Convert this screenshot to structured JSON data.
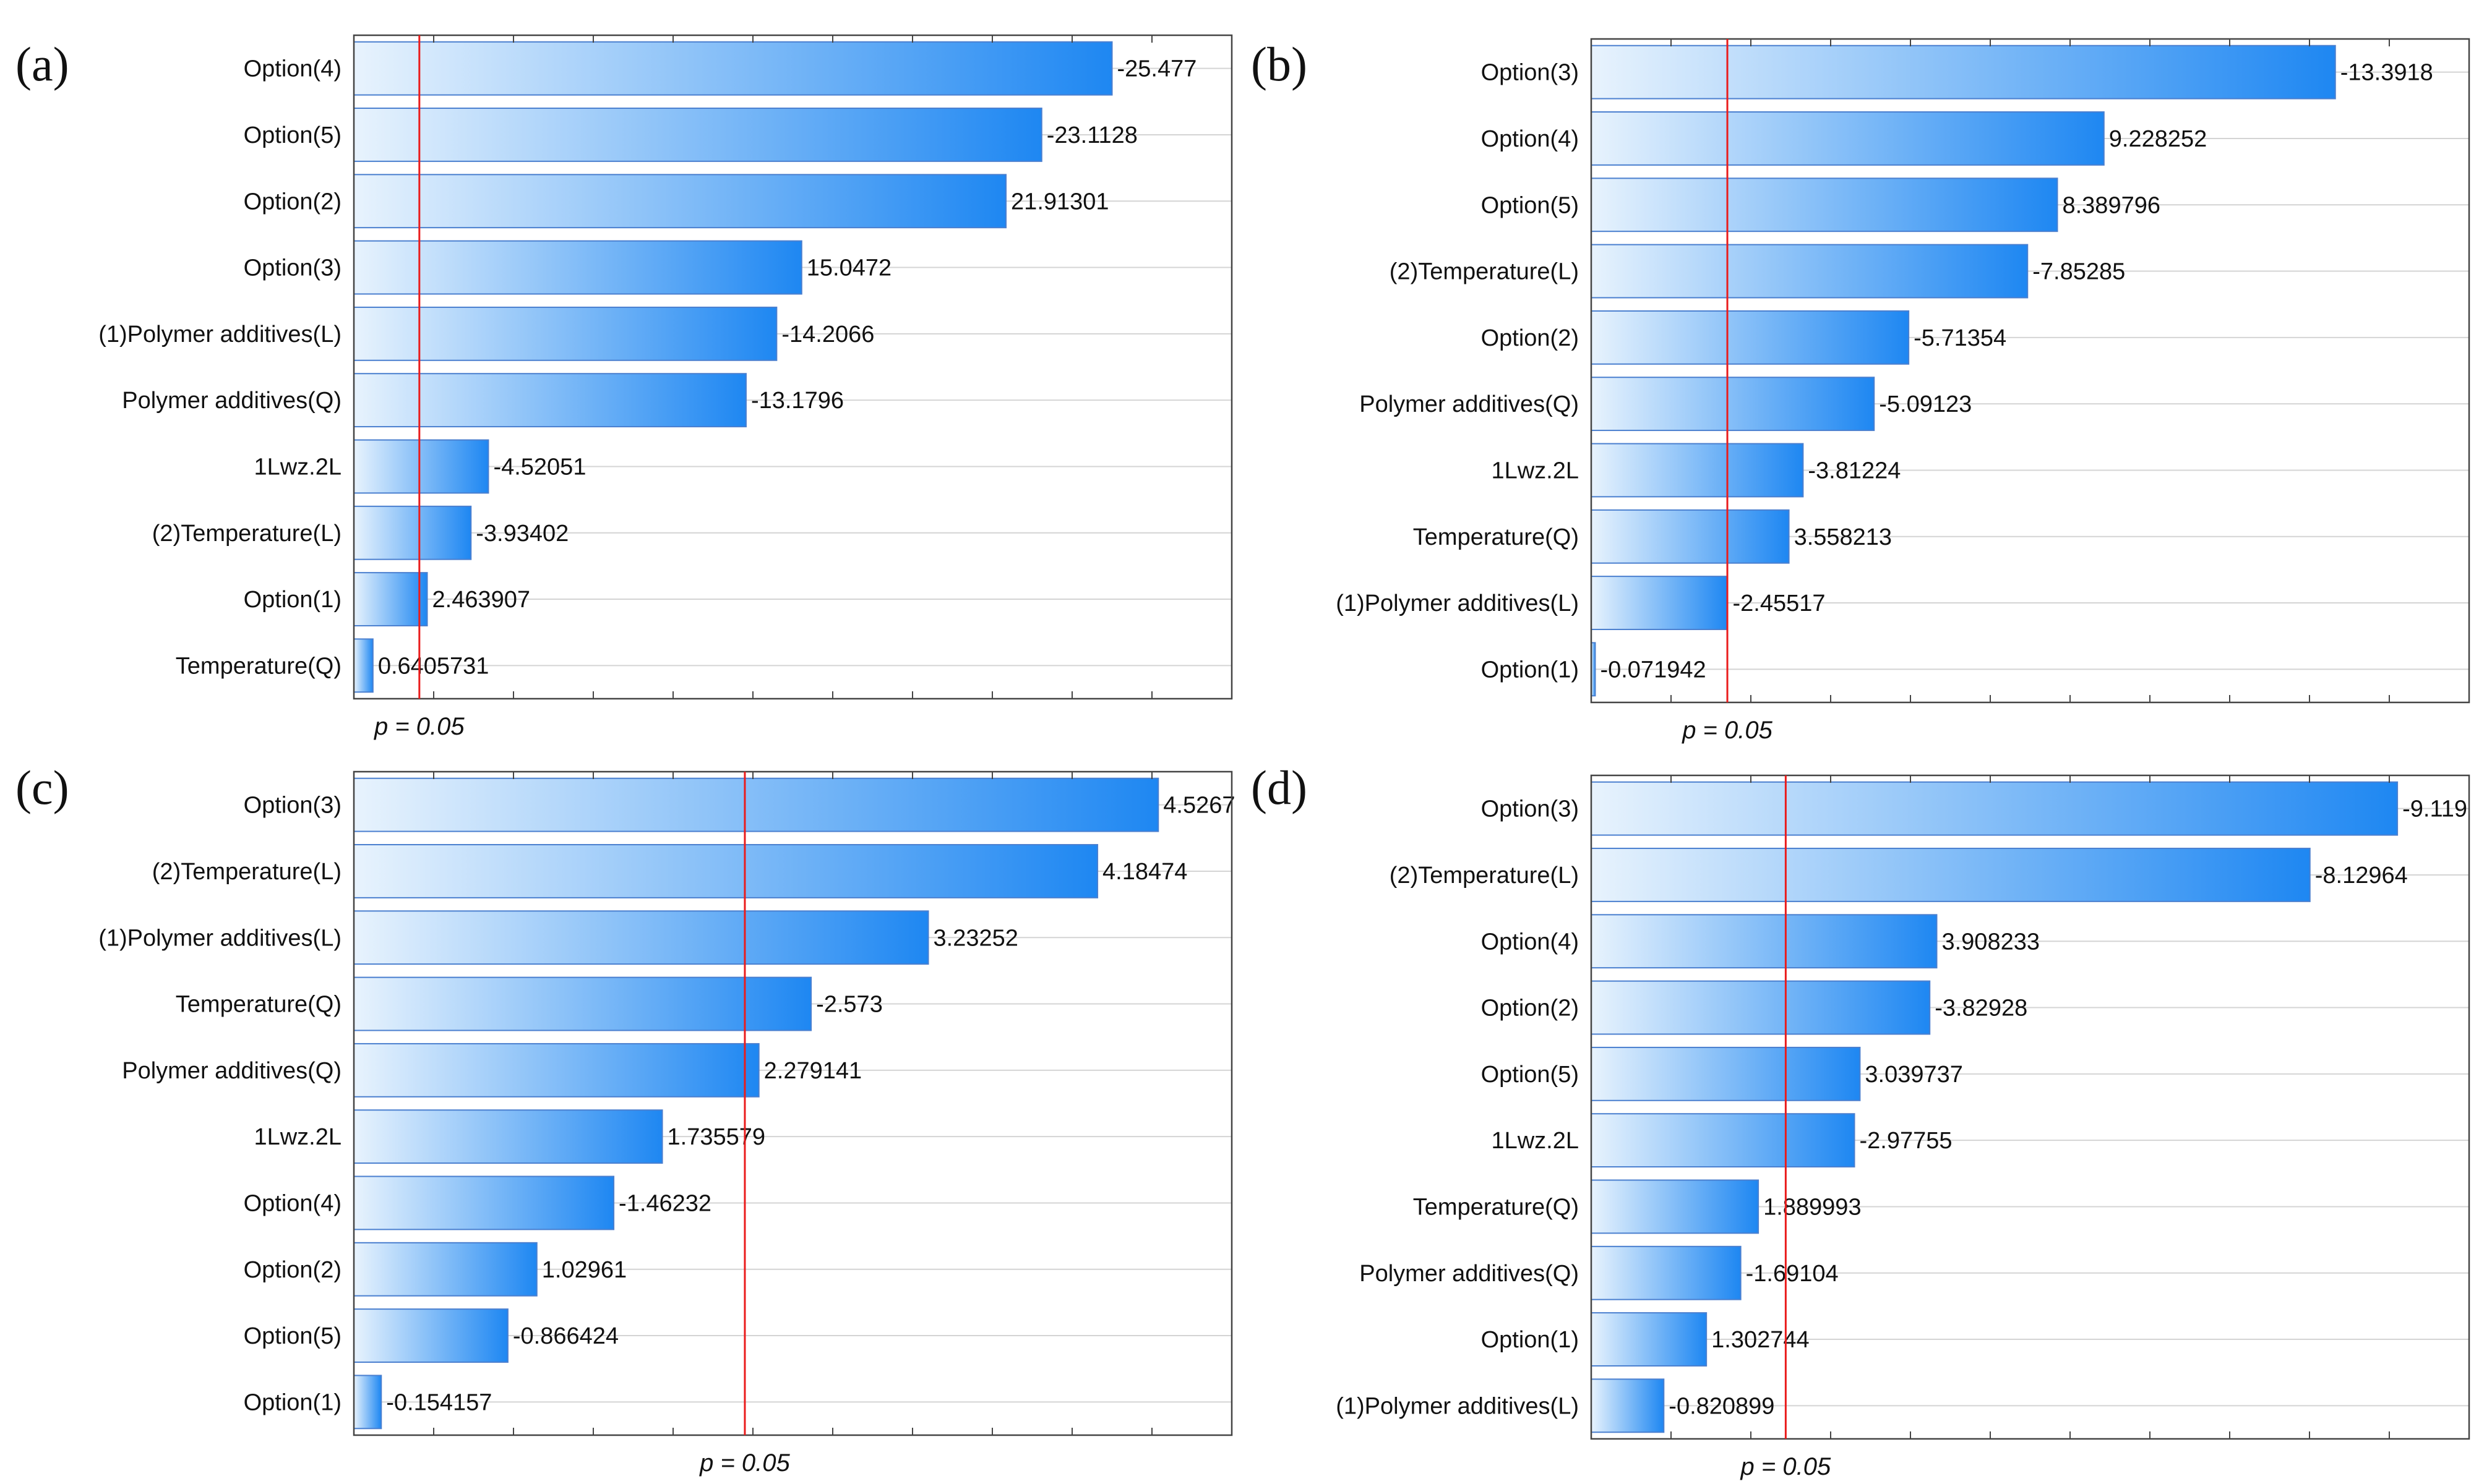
{
  "colors": {
    "bar_light": "#e8f3fd",
    "bar_dark": "#1e87f2",
    "bar_border": "#4a7fcf",
    "p_line": "#ea1c1c"
  },
  "chart_data": [
    {
      "type": "bar",
      "panel": "(a)",
      "title": "",
      "p_label": "p = 0.05",
      "p_threshold": 2.2,
      "xlim": [
        0,
        29.5
      ],
      "categories": [
        "Option(4)",
        "Option(5)",
        "Option(2)",
        "Option(3)",
        "(1)Polymer additives(L)",
        "Polymer additives(Q)",
        "1Lwz.2L",
        "(2)Temperature(L)",
        "Option(1)",
        "Temperature(Q)"
      ],
      "values": [
        -25.477,
        -23.1128,
        21.91301,
        15.0472,
        -14.2066,
        -13.1796,
        -4.52051,
        -3.93402,
        2.463907,
        0.6405731
      ],
      "value_labels": [
        "-25.477",
        "-23.1128",
        "21.91301",
        "15.0472",
        "-14.2066",
        "-13.1796",
        "-4.52051",
        "-3.93402",
        "2.463907",
        "0.6405731"
      ]
    },
    {
      "type": "bar",
      "panel": "(b)",
      "title": "",
      "p_label": "p = 0.05",
      "p_threshold": 2.45,
      "xlim": [
        0,
        15.8
      ],
      "categories": [
        "Option(3)",
        "Option(4)",
        "Option(5)",
        "(2)Temperature(L)",
        "Option(2)",
        "Polymer additives(Q)",
        "1Lwz.2L",
        "Temperature(Q)",
        "(1)Polymer additives(L)",
        "Option(1)"
      ],
      "values": [
        -13.3918,
        9.228252,
        8.389796,
        -7.85285,
        -5.71354,
        -5.09123,
        -3.81224,
        3.558213,
        -2.45517,
        -0.071942
      ],
      "value_labels": [
        "-13.3918",
        "9.228252",
        "8.389796",
        "-7.85285",
        "-5.71354",
        "-5.09123",
        "-3.81224",
        "3.558213",
        "-2.45517",
        "-0.071942"
      ]
    },
    {
      "type": "bar",
      "panel": "(c)",
      "title": "",
      "p_label": "p = 0.05",
      "p_threshold": 2.2,
      "xlim": [
        0,
        4.94
      ],
      "categories": [
        "Option(3)",
        "(2)Temperature(L)",
        "(1)Polymer additives(L)",
        "Temperature(Q)",
        "Polymer additives(Q)",
        "1Lwz.2L",
        "Option(4)",
        "Option(2)",
        "Option(5)",
        "Option(1)"
      ],
      "values": [
        4.5267,
        4.18474,
        3.23252,
        -2.573,
        2.279141,
        1.735579,
        -1.46232,
        1.02961,
        -0.866424,
        -0.154157
      ],
      "value_labels": [
        "4.5267",
        "4.18474",
        "3.23252",
        "-2.573",
        "2.279141",
        "1.735579",
        "-1.46232",
        "1.02961",
        "-0.866424",
        "-0.154157"
      ]
    },
    {
      "type": "bar",
      "panel": "(d)",
      "title": "",
      "p_label": "p = 0.05",
      "p_threshold": 2.2,
      "xlim": [
        0,
        9.93
      ],
      "categories": [
        "Option(3)",
        "(2)Temperature(L)",
        "Option(4)",
        "Option(2)",
        "Option(5)",
        "1Lwz.2L",
        "Temperature(Q)",
        "Polymer additives(Q)",
        "Option(1)",
        "(1)Polymer additives(L)"
      ],
      "values": [
        -9.119,
        -8.12964,
        3.908233,
        -3.82928,
        3.039737,
        -2.97755,
        1.889993,
        -1.69104,
        1.302744,
        -0.820899
      ],
      "value_labels": [
        "-9.119",
        "-8.12964",
        "3.908233",
        "-3.82928",
        "3.039737",
        "-2.97755",
        "1.889993",
        "-1.69104",
        "1.302744",
        "-0.820899"
      ]
    }
  ]
}
